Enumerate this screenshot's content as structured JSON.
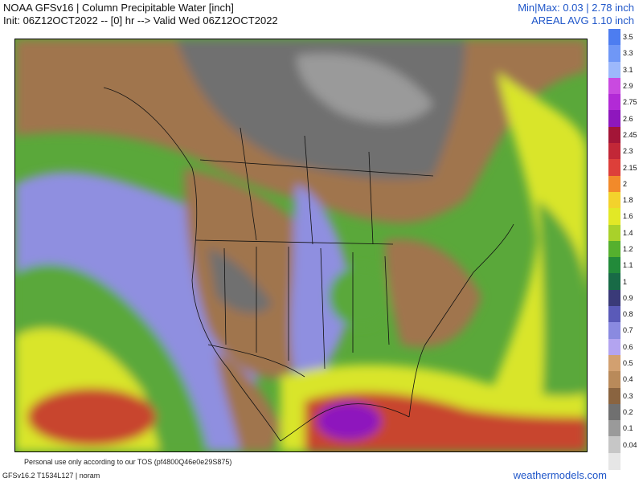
{
  "header": {
    "title_line1": "NOAA GFSv16 | Column Precipitable Water [inch]",
    "title_line2": "Init: 06Z12OCT2022 -- [0] hr --> Valid Wed 06Z12OCT2022",
    "minmax": "Min|Max: 0.03 | 2.78 inch",
    "areal_avg": "AREAL AVG 1.10 inch"
  },
  "footer": {
    "tos": "Personal use only according to our TOS (pf4800Q46e0e29S875)",
    "model_info": "GFSv16.2 T1534L127 | noram",
    "site": "weathermodels.com"
  },
  "colorbar": {
    "labels": [
      "3.5",
      "3.3",
      "3.1",
      "2.9",
      "2.75",
      "2.6",
      "2.45",
      "2.3",
      "2.15",
      "2",
      "1.8",
      "1.6",
      "1.4",
      "1.2",
      "1.1",
      "1",
      "0.9",
      "0.8",
      "0.7",
      "0.6",
      "0.5",
      "0.4",
      "0.3",
      "0.2",
      "0.1",
      "0.04"
    ],
    "colors": [
      "#4d7df0",
      "#6f97f6",
      "#9cb8fb",
      "#c94ae0",
      "#b22ad6",
      "#8e17bd",
      "#a31537",
      "#c22737",
      "#dd3f3a",
      "#f28a2a",
      "#f3d22c",
      "#e2e826",
      "#a9d12a",
      "#55b02e",
      "#228a3a",
      "#186a46",
      "#3a3a78",
      "#5a5ab8",
      "#8a8ae0",
      "#b3a4f0",
      "#d2a070",
      "#b98a5a",
      "#8a6440",
      "#707070",
      "#9a9a9a",
      "#c6c6c6",
      "#e6e6e6"
    ]
  },
  "map": {
    "colors": {
      "ocean_moist": "#d9e52a",
      "tropical": "#c8442f",
      "tropical_peak": "#8e17bd",
      "moist_green": "#5aa83a",
      "mid": "#8f8fe0",
      "dry_brown": "#a0754d",
      "very_dry": "#707070",
      "arctic": "#9a9a9a",
      "border": "#111111"
    }
  }
}
